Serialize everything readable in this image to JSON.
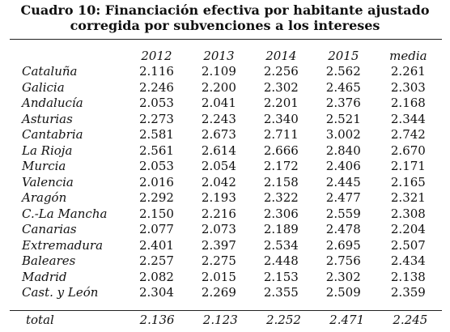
{
  "title": {
    "line1": "Cuadro 10: Financiación efectiva por habitante ajustado",
    "line2": "corregida por subvenciones a los intereses"
  },
  "table": {
    "columns": [
      "2012",
      "2013",
      "2014",
      "2015",
      "media"
    ],
    "rows": [
      {
        "region": "Cataluña",
        "values": [
          "2.116",
          "2.109",
          "2.256",
          "2.562",
          "2.261"
        ]
      },
      {
        "region": "Galicia",
        "values": [
          "2.246",
          "2.200",
          "2.302",
          "2.465",
          "2.303"
        ]
      },
      {
        "region": "Andalucía",
        "values": [
          "2.053",
          "2.041",
          "2.201",
          "2.376",
          "2.168"
        ]
      },
      {
        "region": "Asturias",
        "values": [
          "2.273",
          "2.243",
          "2.340",
          "2.521",
          "2.344"
        ]
      },
      {
        "region": "Cantabria",
        "values": [
          "2.581",
          "2.673",
          "2.711",
          "3.002",
          "2.742"
        ]
      },
      {
        "region": "La Rioja",
        "values": [
          "2.561",
          "2.614",
          "2.666",
          "2.840",
          "2.670"
        ]
      },
      {
        "region": "Murcia",
        "values": [
          "2.053",
          "2.054",
          "2.172",
          "2.406",
          "2.171"
        ]
      },
      {
        "region": "Valencia",
        "values": [
          "2.016",
          "2.042",
          "2.158",
          "2.445",
          "2.165"
        ]
      },
      {
        "region": "Aragón",
        "values": [
          "2.292",
          "2.193",
          "2.322",
          "2.477",
          "2.321"
        ]
      },
      {
        "region": "C.-La Mancha",
        "values": [
          "2.150",
          "2.216",
          "2.306",
          "2.559",
          "2.308"
        ]
      },
      {
        "region": "Canarias",
        "values": [
          "2.077",
          "2.073",
          "2.189",
          "2.478",
          "2.204"
        ]
      },
      {
        "region": "Extremadura",
        "values": [
          "2.401",
          "2.397",
          "2.534",
          "2.695",
          "2.507"
        ]
      },
      {
        "region": "Baleares",
        "values": [
          "2.257",
          "2.275",
          "2.448",
          "2.756",
          "2.434"
        ]
      },
      {
        "region": "Madrid",
        "values": [
          "2.082",
          "2.015",
          "2.153",
          "2.302",
          "2.138"
        ]
      },
      {
        "region": "Cast. y León",
        "values": [
          "2.304",
          "2.269",
          "2.355",
          "2.509",
          "2.359"
        ]
      }
    ],
    "total": {
      "label": "total",
      "values": [
        "2.136",
        "2.123",
        "2.252",
        "2.471",
        "2.245"
      ]
    }
  }
}
